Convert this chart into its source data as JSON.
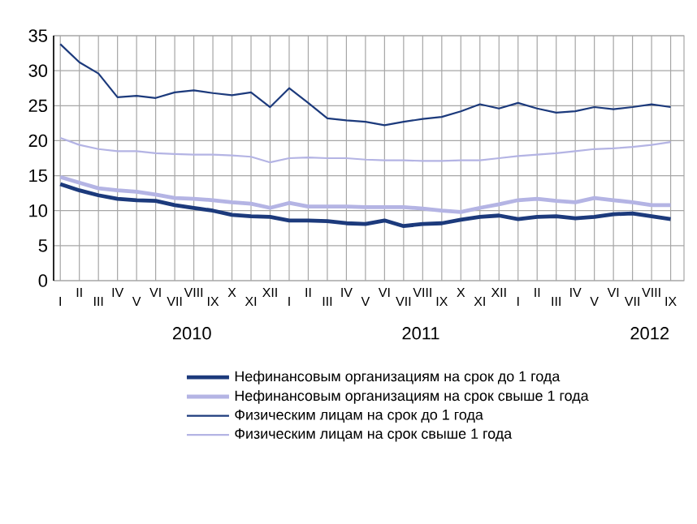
{
  "chart_data": {
    "type": "line",
    "categories": [
      "I",
      "II",
      "III",
      "IV",
      "V",
      "VI",
      "VII",
      "VIII",
      "IX",
      "X",
      "XI",
      "XII",
      "I",
      "II",
      "III",
      "IV",
      "V",
      "VI",
      "VII",
      "VIII",
      "IX",
      "X",
      "XI",
      "XII",
      "I",
      "II",
      "III",
      "IV",
      "V",
      "VI",
      "VII",
      "VIII",
      "IX"
    ],
    "series": [
      {
        "name": "Нефинансовым организациям на срок до 1 года",
        "color": "#1c3a7c",
        "values": [
          13.8,
          12.9,
          12.2,
          11.7,
          11.5,
          11.4,
          10.8,
          10.4,
          10.0,
          9.4,
          9.2,
          9.1,
          8.6,
          8.6,
          8.5,
          8.2,
          8.1,
          8.6,
          7.8,
          8.1,
          8.2,
          8.7,
          9.1,
          9.3,
          8.8,
          9.1,
          9.2,
          8.9,
          9.1,
          9.5,
          9.6,
          9.2,
          8.8
        ]
      },
      {
        "name": "Нефинансовым организациям на срок свыше 1 года",
        "color": "#b4b4e4",
        "values": [
          14.8,
          14.0,
          13.2,
          12.9,
          12.7,
          12.3,
          11.8,
          11.7,
          11.5,
          11.2,
          11.0,
          10.4,
          11.1,
          10.6,
          10.6,
          10.6,
          10.5,
          10.5,
          10.5,
          10.3,
          10.0,
          9.8,
          10.4,
          10.9,
          11.5,
          11.7,
          11.4,
          11.2,
          11.8,
          11.5,
          11.2,
          10.8,
          10.8
        ]
      },
      {
        "name": "Физическим лицам на срок до 1 года",
        "color": "#1c3a7c",
        "values": [
          33.8,
          31.2,
          29.6,
          26.2,
          26.4,
          26.1,
          26.9,
          27.2,
          26.8,
          26.5,
          26.9,
          24.8,
          27.5,
          25.4,
          23.2,
          22.9,
          22.7,
          22.2,
          22.7,
          23.1,
          23.4,
          24.2,
          25.2,
          24.6,
          25.4,
          24.6,
          24.0,
          24.2,
          24.8,
          24.5,
          24.8,
          25.2,
          24.8
        ]
      },
      {
        "name": "Физическим лицам на срок свыше 1 года",
        "color": "#b4b4e4",
        "values": [
          20.4,
          19.4,
          18.8,
          18.5,
          18.5,
          18.2,
          18.1,
          18.0,
          18.0,
          17.9,
          17.7,
          16.9,
          17.5,
          17.6,
          17.5,
          17.5,
          17.3,
          17.2,
          17.2,
          17.1,
          17.1,
          17.2,
          17.2,
          17.5,
          17.8,
          18.0,
          18.2,
          18.5,
          18.8,
          18.9,
          19.1,
          19.4,
          19.8
        ]
      }
    ],
    "ylim": [
      0,
      35
    ],
    "yticks": [
      0,
      5,
      10,
      15,
      20,
      25,
      30,
      35
    ],
    "annotations": [
      "2010",
      "2011",
      "2012"
    ],
    "grid": true,
    "legend": "bottom"
  }
}
